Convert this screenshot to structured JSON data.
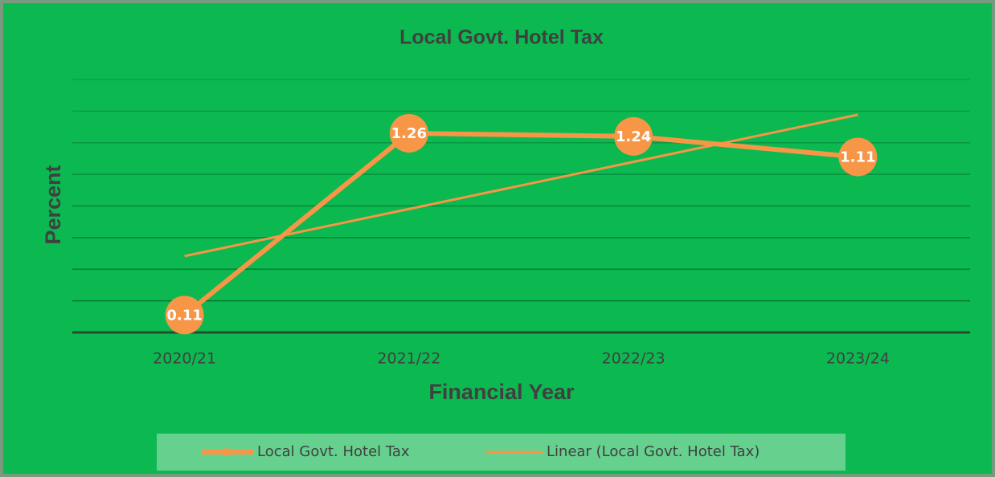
{
  "chart_data": {
    "type": "line",
    "title": "Local Govt. Hotel Tax",
    "x_label": "Financial Year",
    "y_label": "Percent",
    "categories": [
      "2020/21",
      "2021/22",
      "2022/23",
      "2023/24"
    ],
    "series": [
      {
        "name": "Local Govt. Hotel Tax",
        "color": "#f79646",
        "values": [
          0.11,
          1.26,
          1.24,
          1.11
        ]
      }
    ],
    "trendline": {
      "type": "linear",
      "name": "Linear (Local Govt. Hotel Tax)",
      "color": "#f79646"
    },
    "ylim": [
      0,
      1.6
    ],
    "yticks": [
      0,
      0.2,
      0.4,
      0.6,
      0.8,
      1.0,
      1.2,
      1.4,
      1.6
    ],
    "grid": true,
    "legend": "bottom"
  }
}
